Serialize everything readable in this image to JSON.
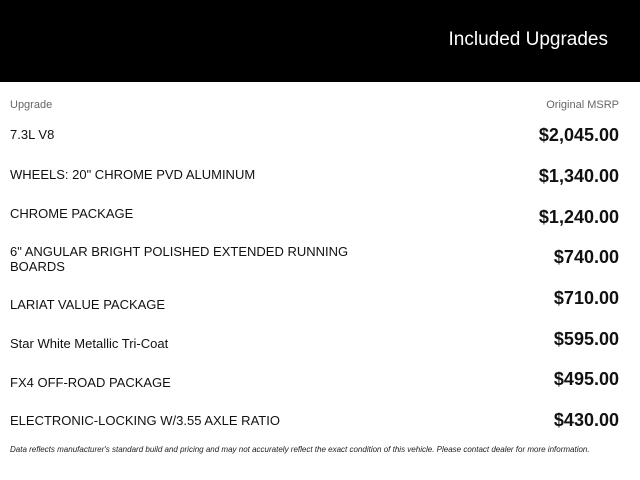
{
  "header": {
    "title": "Included Upgrades"
  },
  "table": {
    "columns": {
      "upgrade": "Upgrade",
      "msrp": "Original MSRP"
    },
    "rows": [
      {
        "name": "7.3L V8",
        "price": "$2,045.00"
      },
      {
        "name": "WHEELS: 20\" CHROME PVD ALUMINUM",
        "price": "$1,340.00"
      },
      {
        "name": "CHROME PACKAGE",
        "price": "$1,240.00"
      },
      {
        "name": "6\" ANGULAR BRIGHT POLISHED EXTENDED RUNNING BOARDS",
        "price": "$740.00"
      },
      {
        "name": "LARIAT VALUE PACKAGE",
        "price": "$710.00"
      },
      {
        "name": "Star White Metallic Tri-Coat",
        "price": "$595.00"
      },
      {
        "name": "FX4 OFF-ROAD PACKAGE",
        "price": "$495.00"
      },
      {
        "name": "ELECTRONIC-LOCKING W/3.55 AXLE RATIO",
        "price": "$430.00"
      }
    ]
  },
  "footer": {
    "disclaimer": "Data reflects manufacturer's standard build and pricing and may not accurately reflect the exact condition of this vehicle. Please contact dealer for more information."
  }
}
